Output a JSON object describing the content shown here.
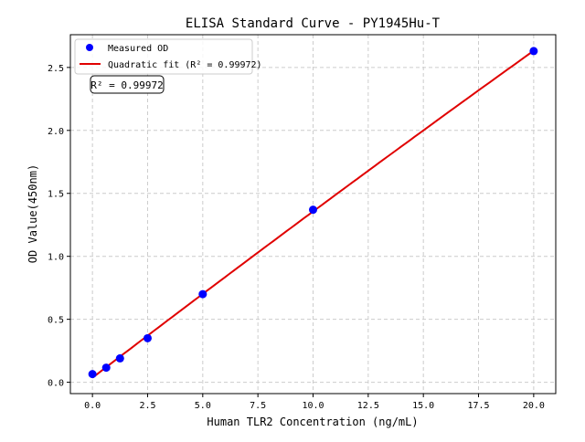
{
  "chart_data": {
    "type": "scatter",
    "title": "ELISA Standard Curve - PY1945Hu-T",
    "xlabel": "Human TLR2 Concentration (ng/mL)",
    "ylabel": "OD Value(450nm)",
    "xlim": [
      -1,
      21
    ],
    "ylim": [
      -0.09,
      2.76
    ],
    "xticks": [
      0,
      2.5,
      5,
      7.5,
      10,
      12.5,
      15,
      17.5,
      20
    ],
    "xtick_labels": [
      "0.0",
      "2.5",
      "5.0",
      "7.5",
      "10.0",
      "12.5",
      "15.0",
      "17.5",
      "20.0"
    ],
    "yticks": [
      0,
      0.5,
      1,
      1.5,
      2,
      2.5
    ],
    "ytick_labels": [
      "0.0",
      "0.5",
      "1.0",
      "1.5",
      "2.0",
      "2.5"
    ],
    "grid": true,
    "legend_placement": "top-left",
    "series": [
      {
        "name": "Measured OD",
        "kind": "scatter",
        "color": "#0000ff",
        "x": [
          0,
          0.625,
          1.25,
          2.5,
          5,
          10,
          20
        ],
        "y": [
          0.065,
          0.116,
          0.19,
          0.35,
          0.7,
          1.37,
          2.63
        ]
      },
      {
        "name": "Quadratic fit (R² = 0.99972)",
        "kind": "line",
        "color": "#e00000",
        "fit": "quadratic"
      }
    ],
    "annotation": "R² = 0.99972"
  }
}
